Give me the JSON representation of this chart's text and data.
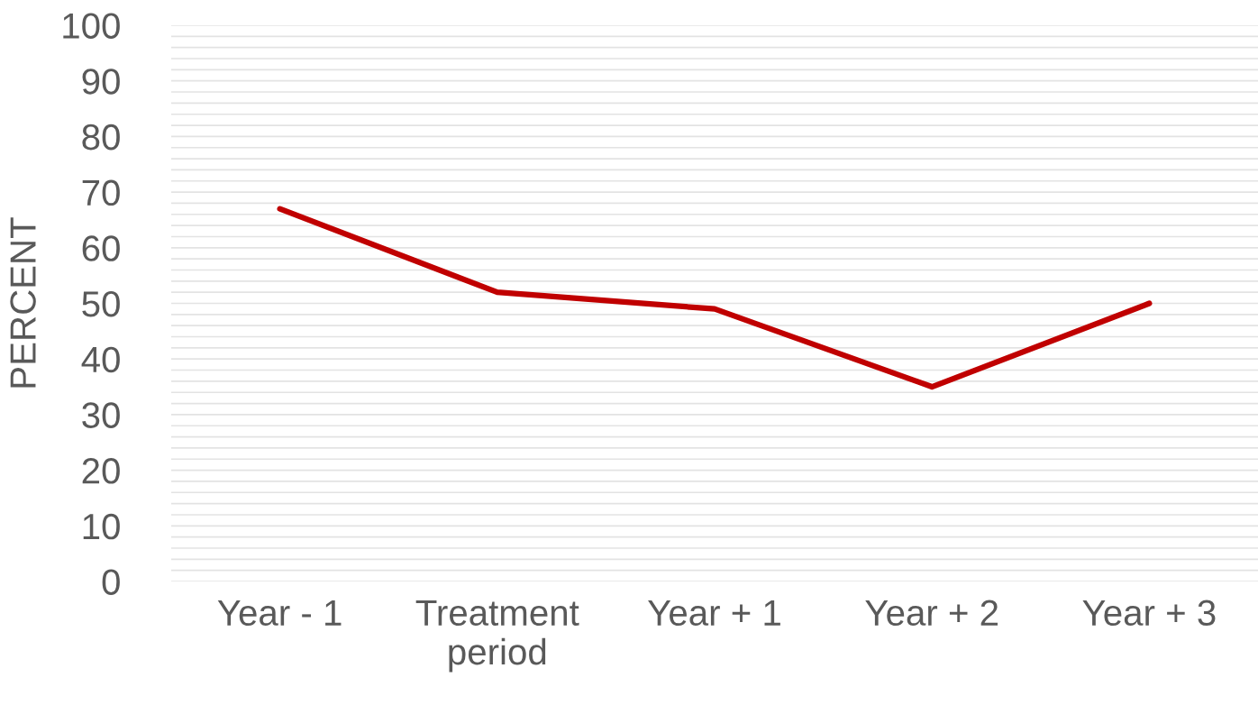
{
  "chart_data": {
    "type": "line",
    "ylabel": "PERCENT",
    "categories": [
      "Year - 1",
      "Treatment\nperiod",
      "Year + 1",
      "Year + 2",
      "Year + 3"
    ],
    "series": [
      {
        "color": "#c00000",
        "values": [
          67,
          52,
          49,
          35,
          50
        ]
      }
    ],
    "ylim": [
      0,
      100
    ],
    "yticks": [
      0,
      {
        "value": 2,
        "label": null
      },
      {
        "value": 4,
        "label": null
      },
      {
        "value": 6,
        "label": null
      },
      {
        "value": 8,
        "label": null
      },
      10,
      {
        "value": 12,
        "label": null
      },
      {
        "value": 14,
        "label": null
      },
      {
        "value": 16,
        "label": null
      },
      {
        "value": 18,
        "label": null
      },
      20,
      {
        "value": 22,
        "label": null
      },
      {
        "value": 24,
        "label": null
      },
      {
        "value": 26,
        "label": null
      },
      {
        "value": 28,
        "label": null
      },
      30,
      {
        "value": 32,
        "label": null
      },
      {
        "value": 34,
        "label": null
      },
      {
        "value": 36,
        "label": null
      },
      {
        "value": 38,
        "label": null
      },
      40,
      {
        "value": 42,
        "label": null
      },
      {
        "value": 44,
        "label": null
      },
      {
        "value": 46,
        "label": null
      },
      {
        "value": 48,
        "label": null
      },
      50,
      {
        "value": 52,
        "label": null
      },
      {
        "value": 54,
        "label": null
      },
      {
        "value": 56,
        "label": null
      },
      {
        "value": 58,
        "label": null
      },
      60,
      {
        "value": 62,
        "label": null
      },
      {
        "value": 64,
        "label": null
      },
      {
        "value": 66,
        "label": null
      },
      {
        "value": 68,
        "label": null
      },
      70,
      {
        "value": 72,
        "label": null
      },
      {
        "value": 74,
        "label": null
      },
      {
        "value": 76,
        "label": null
      },
      {
        "value": 78,
        "label": null
      },
      80,
      {
        "value": 82,
        "label": null
      },
      {
        "value": 84,
        "label": null
      },
      {
        "value": 86,
        "label": null
      },
      {
        "value": 88,
        "label": null
      },
      90,
      {
        "value": 92,
        "label": null
      },
      {
        "value": 94,
        "label": null
      },
      {
        "value": 96,
        "label": null
      },
      {
        "value": 98,
        "label": null
      },
      100
    ],
    "grid": "y",
    "legend": false,
    "marker": "none",
    "line_style": "solid"
  }
}
